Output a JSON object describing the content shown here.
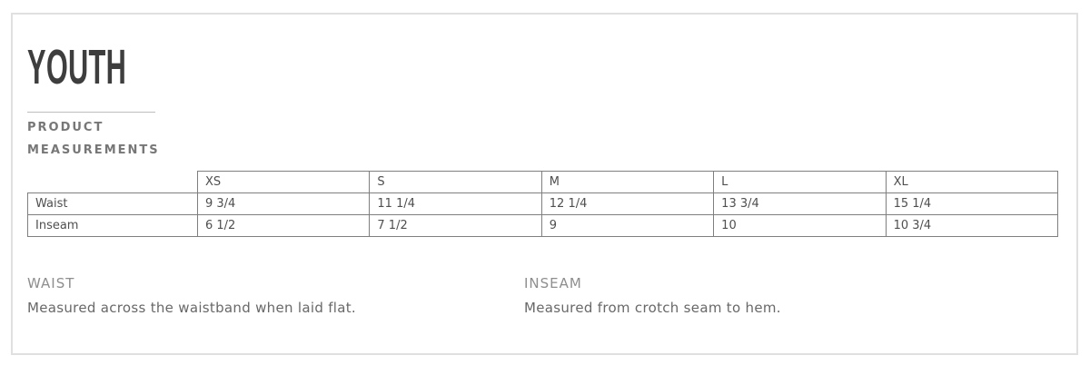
{
  "header": {
    "title": "YOUTH",
    "section_line1": "PRODUCT",
    "section_line2": "MEASUREMENTS"
  },
  "size_chart": {
    "columns": [
      "XS",
      "S",
      "M",
      "L",
      "XL"
    ],
    "rows": [
      {
        "label": "Waist",
        "values": [
          "9 3/4",
          "11 1/4",
          "12 1/4",
          "13 3/4",
          "15 1/4"
        ]
      },
      {
        "label": "Inseam",
        "values": [
          "6 1/2",
          "7 1/2",
          "9",
          "10",
          "10 3/4"
        ]
      }
    ]
  },
  "definitions": [
    {
      "term": "WAIST",
      "description": "Measured across the waistband when laid flat."
    },
    {
      "term": "INSEAM",
      "description": "Measured from crotch seam to hem."
    }
  ],
  "colors": {
    "title_text": "#3e3e3e",
    "section_heading_text": "#777777",
    "table_border": "#7f7f7f",
    "table_text": "#4f4f4f",
    "definition_term_text": "#8e8e8e",
    "definition_body_text": "#686868",
    "panel_border": "#e0e0e0",
    "divider_line": "#bdbdbd"
  }
}
